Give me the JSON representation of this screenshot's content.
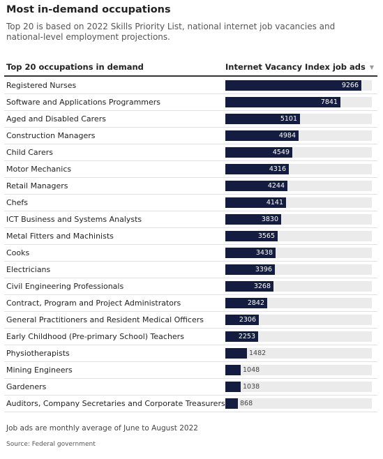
{
  "title": "Most in-demand occupations",
  "subtitle": "Top 20 is based on 2022 Skills Priority List, national internet job vacancies and national-level employment projections.",
  "table": {
    "column_label": "Top 20 occupations in demand",
    "column_value": "Internet Vacancy Index job ads",
    "sort_icon": "sort-descending-icon"
  },
  "note": "Job ads are monthly average of June to August 2022",
  "source": "Source: Federal government",
  "colors": {
    "bar": "#141c42",
    "track": "#ebebeb"
  },
  "chart_data": {
    "type": "bar",
    "orientation": "horizontal",
    "title": "Most in-demand occupations",
    "subtitle": "Top 20 is based on 2022 Skills Priority List, national internet job vacancies and national-level employment projections.",
    "xlabel": "Internet Vacancy Index job ads",
    "ylabel": "Top 20 occupations in demand",
    "xlim": [
      0,
      10000
    ],
    "grid": false,
    "categories": [
      "Registered Nurses",
      "Software and Applications Programmers",
      "Aged and Disabled Carers",
      "Construction Managers",
      "Child Carers",
      "Motor Mechanics",
      "Retail Managers",
      "Chefs",
      "ICT Business and Systems Analysts",
      "Metal Fitters and Machinists",
      "Cooks",
      "Electricians",
      "Civil Engineering Professionals",
      "Contract, Program and Project Administrators",
      "General Practitioners and Resident Medical Officers",
      "Early Childhood (Pre-primary School) Teachers",
      "Physiotherapists",
      "Mining Engineers",
      "Gardeners",
      "Auditors, Company Secretaries and Corporate Treasurers"
    ],
    "values": [
      9266,
      7841,
      5101,
      4984,
      4549,
      4316,
      4244,
      4141,
      3830,
      3565,
      3438,
      3396,
      3268,
      2842,
      2306,
      2253,
      1482,
      1048,
      1038,
      868
    ]
  }
}
